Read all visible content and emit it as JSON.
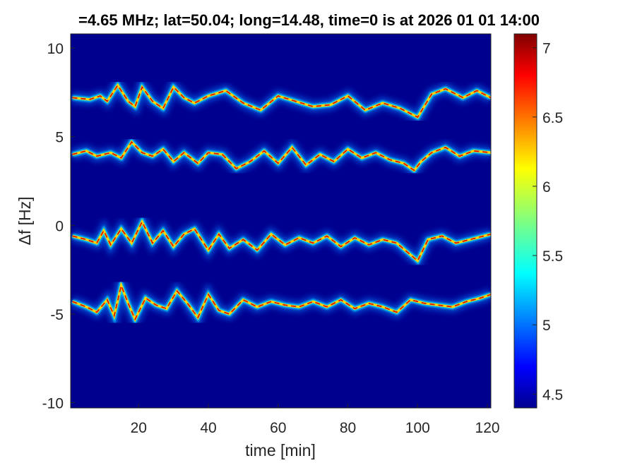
{
  "chart_data": {
    "type": "heatmap",
    "title": "=4.65 MHz;  lat=50.04; long=14.48, time=0 is at 2026 01 01 14:00",
    "xlabel": "time [min]",
    "ylabel": "Δf [Hz]",
    "xlim": [
      0.5,
      121
    ],
    "ylim": [
      -10.3,
      10.8
    ],
    "xticks": [
      20,
      40,
      60,
      80,
      100,
      120
    ],
    "yticks": [
      10,
      5,
      0,
      -5,
      -10
    ],
    "colorbar": {
      "range": [
        4.4,
        7.1
      ],
      "ticks": [
        7,
        6.5,
        6,
        5.5,
        5,
        4.5
      ],
      "colormap": "jet"
    },
    "background_color": "#00008f",
    "traces": [
      {
        "name": "",
        "points": [
          [
            1,
            7.2
          ],
          [
            6,
            7.1
          ],
          [
            9,
            7.3
          ],
          [
            11,
            7.0
          ],
          [
            14,
            7.9
          ],
          [
            17,
            7.0
          ],
          [
            19,
            6.7
          ],
          [
            21,
            7.8
          ],
          [
            24,
            7.0
          ],
          [
            27,
            6.6
          ],
          [
            30,
            7.8
          ],
          [
            33,
            7.2
          ],
          [
            36,
            6.9
          ],
          [
            40,
            7.3
          ],
          [
            45,
            7.6
          ],
          [
            50,
            6.9
          ],
          [
            55,
            6.5
          ],
          [
            60,
            7.3
          ],
          [
            65,
            7.0
          ],
          [
            70,
            6.7
          ],
          [
            75,
            6.8
          ],
          [
            80,
            7.3
          ],
          [
            85,
            6.5
          ],
          [
            90,
            6.9
          ],
          [
            95,
            6.6
          ],
          [
            100,
            6.1
          ],
          [
            104,
            7.4
          ],
          [
            108,
            7.7
          ],
          [
            113,
            7.2
          ],
          [
            117,
            7.6
          ],
          [
            121,
            7.2
          ]
        ]
      },
      {
        "name": "",
        "points": [
          [
            1,
            4.0
          ],
          [
            5,
            4.2
          ],
          [
            8,
            3.9
          ],
          [
            12,
            4.1
          ],
          [
            15,
            3.8
          ],
          [
            18,
            4.7
          ],
          [
            21,
            4.1
          ],
          [
            24,
            3.9
          ],
          [
            27,
            4.3
          ],
          [
            30,
            3.6
          ],
          [
            33,
            4.1
          ],
          [
            37,
            3.5
          ],
          [
            40,
            4.1
          ],
          [
            44,
            4.0
          ],
          [
            48,
            3.2
          ],
          [
            52,
            3.6
          ],
          [
            56,
            4.2
          ],
          [
            60,
            3.5
          ],
          [
            64,
            4.4
          ],
          [
            68,
            3.4
          ],
          [
            72,
            4.0
          ],
          [
            76,
            3.6
          ],
          [
            80,
            4.3
          ],
          [
            84,
            3.8
          ],
          [
            88,
            4.1
          ],
          [
            92,
            3.7
          ],
          [
            96,
            3.5
          ],
          [
            99,
            3.1
          ],
          [
            101,
            3.6
          ],
          [
            104,
            4.1
          ],
          [
            108,
            4.4
          ],
          [
            112,
            3.9
          ],
          [
            116,
            4.2
          ],
          [
            121,
            4.1
          ]
        ]
      },
      {
        "name": "",
        "points": [
          [
            1,
            -0.6
          ],
          [
            5,
            -0.8
          ],
          [
            8,
            -1.0
          ],
          [
            10,
            -0.3
          ],
          [
            12,
            -1.1
          ],
          [
            15,
            -0.2
          ],
          [
            18,
            -1.0
          ],
          [
            21,
            0.2
          ],
          [
            24,
            -1.0
          ],
          [
            27,
            -0.3
          ],
          [
            30,
            -1.2
          ],
          [
            33,
            -0.5
          ],
          [
            36,
            -0.2
          ],
          [
            40,
            -1.4
          ],
          [
            43,
            -0.5
          ],
          [
            46,
            -1.3
          ],
          [
            50,
            -0.8
          ],
          [
            54,
            -1.4
          ],
          [
            58,
            -0.5
          ],
          [
            62,
            -1.1
          ],
          [
            66,
            -0.7
          ],
          [
            70,
            -1.0
          ],
          [
            74,
            -0.6
          ],
          [
            78,
            -1.2
          ],
          [
            82,
            -0.7
          ],
          [
            86,
            -1.1
          ],
          [
            90,
            -0.8
          ],
          [
            94,
            -1.0
          ],
          [
            97,
            -1.5
          ],
          [
            100,
            -2.0
          ],
          [
            103,
            -0.8
          ],
          [
            107,
            -0.6
          ],
          [
            111,
            -1.0
          ],
          [
            115,
            -0.8
          ],
          [
            121,
            -0.5
          ]
        ]
      },
      {
        "name": "",
        "points": [
          [
            1,
            -4.3
          ],
          [
            5,
            -4.6
          ],
          [
            8,
            -4.9
          ],
          [
            11,
            -4.2
          ],
          [
            13,
            -5.1
          ],
          [
            15,
            -3.4
          ],
          [
            17,
            -4.4
          ],
          [
            19,
            -5.3
          ],
          [
            22,
            -4.1
          ],
          [
            25,
            -4.5
          ],
          [
            28,
            -4.7
          ],
          [
            31,
            -3.7
          ],
          [
            34,
            -4.4
          ],
          [
            37,
            -5.2
          ],
          [
            40,
            -3.9
          ],
          [
            43,
            -4.8
          ],
          [
            46,
            -5.0
          ],
          [
            50,
            -4.2
          ],
          [
            54,
            -4.6
          ],
          [
            58,
            -4.3
          ],
          [
            62,
            -4.5
          ],
          [
            66,
            -4.6
          ],
          [
            70,
            -4.3
          ],
          [
            74,
            -4.6
          ],
          [
            78,
            -4.2
          ],
          [
            82,
            -4.7
          ],
          [
            86,
            -4.4
          ],
          [
            90,
            -4.6
          ],
          [
            94,
            -4.9
          ],
          [
            98,
            -4.2
          ],
          [
            102,
            -4.4
          ],
          [
            106,
            -4.5
          ],
          [
            110,
            -4.6
          ],
          [
            114,
            -4.3
          ],
          [
            118,
            -4.1
          ],
          [
            121,
            -3.9
          ]
        ]
      }
    ]
  }
}
